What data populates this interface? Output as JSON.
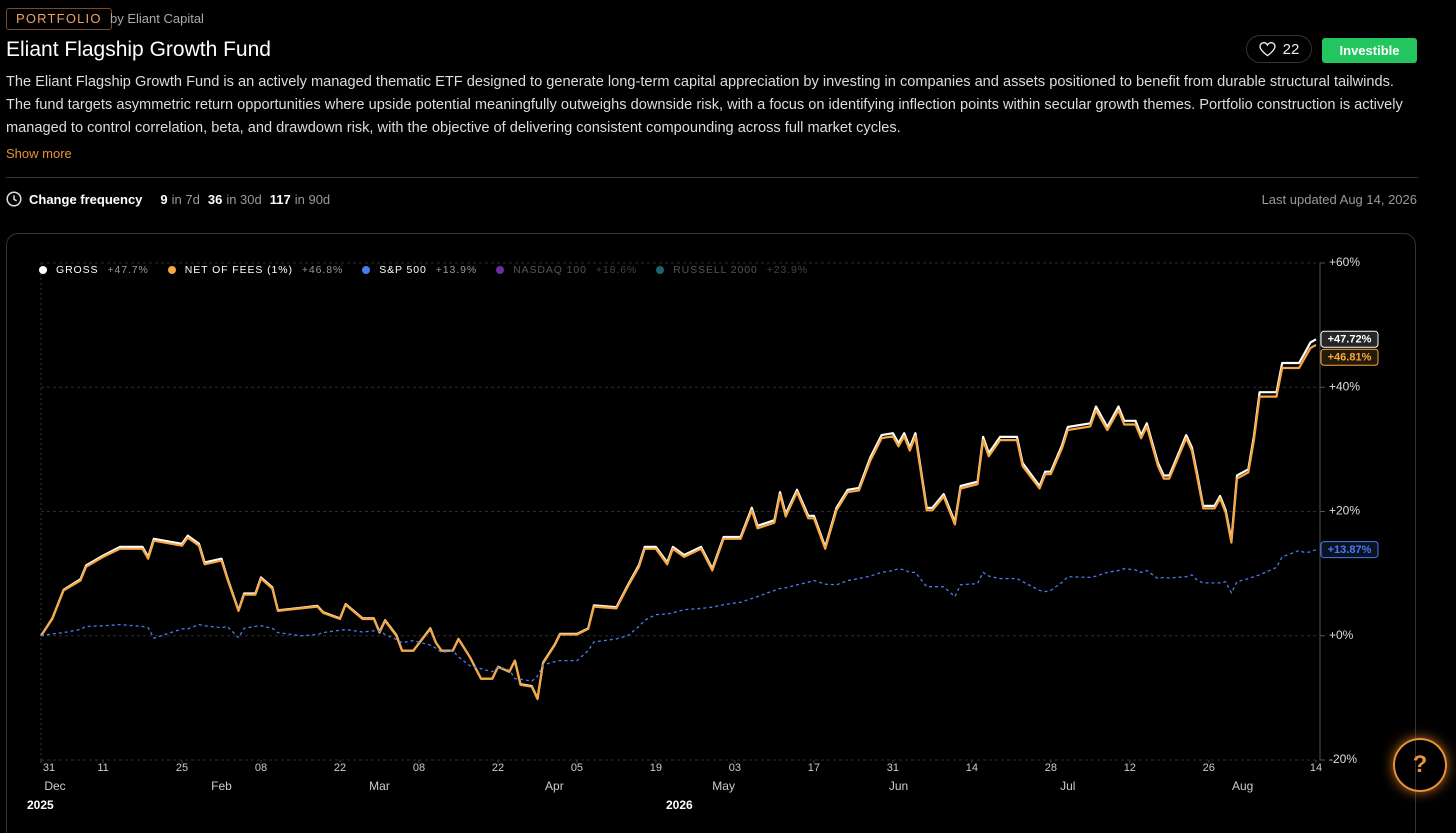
{
  "header": {
    "tag": "PORTFOLIO",
    "byline": "by Eliant Capital",
    "title": "Eliant Flagship Growth Fund",
    "likes": 22,
    "status": "Investible",
    "description": "The Eliant Flagship Growth Fund is an actively managed thematic ETF designed to generate long-term capital appreciation by investing in companies and assets positioned to benefit from durable structural tailwinds. The fund targets asymmetric return opportunities where upside potential meaningfully outweighs downside risk, with a focus on identifying inflection points within secular growth themes. Portfolio construction is actively managed to control correlation, beta, and drawdown risk, with the objective of delivering consistent compounding across full market cycles.",
    "show_more": "Show more"
  },
  "stats": {
    "label": "Change frequency",
    "items": [
      {
        "count": 9,
        "period": "in 7d"
      },
      {
        "count": 36,
        "period": "in 30d"
      },
      {
        "count": 117,
        "period": "in 90d"
      }
    ],
    "last_updated": "Last updated Aug 14, 2026"
  },
  "help_label": "?",
  "chart_data": {
    "type": "line",
    "x": [
      "2025-12-31",
      "2026-01-02",
      "2026-01-04",
      "2026-01-07",
      "2026-01-08",
      "2026-01-11",
      "2026-01-14",
      "2026-01-18",
      "2026-01-19",
      "2026-01-20",
      "2026-01-25",
      "2026-01-26",
      "2026-01-28",
      "2026-01-29",
      "2026-02-01",
      "2026-02-02",
      "2026-02-04",
      "2026-02-05",
      "2026-02-07",
      "2026-02-08",
      "2026-02-10",
      "2026-02-11",
      "2026-02-15",
      "2026-02-18",
      "2026-02-19",
      "2026-02-22",
      "2026-02-23",
      "2026-02-26",
      "2026-02-28",
      "2026-03-01",
      "2026-03-02",
      "2026-03-04",
      "2026-03-05",
      "2026-03-07",
      "2026-03-10",
      "2026-03-11",
      "2026-03-12",
      "2026-03-14",
      "2026-03-15",
      "2026-03-17",
      "2026-03-19",
      "2026-03-21",
      "2026-03-22",
      "2026-03-24",
      "2026-03-25",
      "2026-03-26",
      "2026-03-28",
      "2026-03-29",
      "2026-03-30",
      "2026-04-01",
      "2026-04-02",
      "2026-04-05",
      "2026-04-07",
      "2026-04-08",
      "2026-04-12",
      "2026-04-14",
      "2026-04-16",
      "2026-04-17",
      "2026-04-19",
      "2026-04-21",
      "2026-04-22",
      "2026-04-24",
      "2026-04-27",
      "2026-04-29",
      "2026-05-01",
      "2026-05-04",
      "2026-05-06",
      "2026-05-07",
      "2026-05-10",
      "2026-05-11",
      "2026-05-12",
      "2026-05-14",
      "2026-05-16",
      "2026-05-17",
      "2026-05-19",
      "2026-05-21",
      "2026-05-23",
      "2026-05-25",
      "2026-05-27",
      "2026-05-29",
      "2026-05-31",
      "2026-06-01",
      "2026-06-02",
      "2026-06-03",
      "2026-06-04",
      "2026-06-06",
      "2026-06-07",
      "2026-06-09",
      "2026-06-11",
      "2026-06-12",
      "2026-06-15",
      "2026-06-16",
      "2026-06-17",
      "2026-06-19",
      "2026-06-22",
      "2026-06-23",
      "2026-06-26",
      "2026-06-27",
      "2026-06-28",
      "2026-06-30",
      "2026-07-01",
      "2026-07-05",
      "2026-07-06",
      "2026-07-08",
      "2026-07-10",
      "2026-07-11",
      "2026-07-13",
      "2026-07-14",
      "2026-07-15",
      "2026-07-17",
      "2026-07-18",
      "2026-07-19",
      "2026-07-22",
      "2026-07-23",
      "2026-07-24",
      "2026-07-25",
      "2026-07-27",
      "2026-07-28",
      "2026-07-29",
      "2026-07-30",
      "2026-07-31",
      "2026-08-02",
      "2026-08-03",
      "2026-08-04",
      "2026-08-07",
      "2026-08-08",
      "2026-08-11",
      "2026-08-12",
      "2026-08-13",
      "2026-08-14"
    ],
    "series": [
      {
        "name": "GROSS",
        "color": "#ffffff",
        "legend_value": 47.7,
        "legend_label": "+47.7%",
        "end_label": "+47.72%",
        "dashed": false,
        "values": [
          0,
          2.8,
          7.4,
          9.1,
          11.3,
          12.9,
          14.3,
          14.3,
          12.7,
          15.6,
          14.8,
          16.1,
          14.8,
          11.8,
          12.4,
          9.4,
          4.1,
          6.8,
          6.8,
          9.4,
          7.8,
          4.1,
          4.5,
          4.8,
          3.8,
          2.8,
          5.1,
          2.8,
          2.8,
          0.6,
          2.5,
          0.1,
          -2.4,
          -2.4,
          1.2,
          -1.1,
          -2.4,
          -2.4,
          -0.5,
          -3.4,
          -6.9,
          -6.9,
          -5,
          -5.8,
          -4,
          -7.8,
          -8.1,
          -10.1,
          -4.3,
          -1.5,
          0.3,
          0.3,
          1.2,
          4.9,
          4.6,
          8.1,
          11.4,
          14.3,
          14.3,
          11.8,
          14.3,
          13,
          14.3,
          10.8,
          15.9,
          15.9,
          20.6,
          17.7,
          18.6,
          23.1,
          19.6,
          23.5,
          19.3,
          19.3,
          14.3,
          20.6,
          23.5,
          23.8,
          28.7,
          32.3,
          32.6,
          31,
          32.6,
          30.3,
          32.6,
          20.6,
          20.6,
          22.8,
          18.3,
          24.1,
          24.8,
          32,
          29.4,
          32,
          32,
          27.8,
          24.1,
          26.4,
          26.4,
          30.7,
          33.6,
          34.2,
          36.9,
          33.6,
          36.9,
          34.6,
          34.6,
          32.3,
          34.2,
          27.8,
          25.8,
          25.8,
          32.3,
          30.3,
          25.8,
          20.9,
          20.9,
          22.5,
          20.2,
          15.4,
          25.8,
          26.8,
          32.1,
          39.2,
          39.2,
          43.9,
          43.9,
          45.5,
          47.2,
          47.72
        ]
      },
      {
        "name": "NET OF FEES (1%)",
        "color": "#f5a742",
        "legend_value": 46.8,
        "legend_label": "+46.8%",
        "end_label": "+46.81%",
        "dashed": false,
        "values": [
          0,
          2.7,
          7.3,
          8.9,
          11.1,
          12.7,
          14,
          14,
          12.4,
          15.3,
          14.5,
          15.8,
          14.5,
          11.5,
          12.1,
          9.2,
          4,
          6.6,
          6.6,
          9.2,
          7.6,
          4,
          4.4,
          4.7,
          3.7,
          2.7,
          5,
          2.7,
          2.7,
          0.5,
          2.4,
          0,
          -2.4,
          -2.4,
          1.1,
          -1.1,
          -2.4,
          -2.4,
          -0.5,
          -3.4,
          -6.9,
          -6.9,
          -5,
          -5.8,
          -4,
          -7.9,
          -8.2,
          -10.2,
          -4.4,
          -1.6,
          0.2,
          0.2,
          1.1,
          4.7,
          4.4,
          7.9,
          11.1,
          14,
          14,
          11.5,
          14,
          12.7,
          14,
          10.5,
          15.6,
          15.6,
          20.2,
          17.3,
          18.2,
          22.7,
          19.2,
          23.1,
          18.9,
          18.9,
          14,
          20.2,
          23.1,
          23.4,
          28.2,
          31.8,
          32.1,
          30.5,
          32.1,
          29.8,
          32.1,
          20.2,
          20.2,
          22.4,
          17.9,
          23.7,
          24.4,
          31.5,
          28.9,
          31.5,
          31.5,
          27.3,
          23.7,
          26,
          26,
          30.2,
          33.1,
          33.7,
          36.3,
          33.1,
          36.3,
          34,
          34,
          31.8,
          33.7,
          27.3,
          25.3,
          25.3,
          31.8,
          29.8,
          25.3,
          20.5,
          20.5,
          22.1,
          19.8,
          15,
          25.3,
          26.3,
          31.5,
          38.5,
          38.5,
          43.1,
          43.1,
          44.7,
          46.3,
          46.81
        ]
      },
      {
        "name": "S&P 500",
        "color": "#4a7cf0",
        "legend_value": 13.9,
        "legend_label": "+13.9%",
        "end_label": "+13.87%",
        "dashed": true,
        "values": [
          0,
          0.3,
          0.5,
          1,
          1.5,
          1.6,
          1.8,
          1.5,
          1.3,
          -0.4,
          1.1,
          1.1,
          1.8,
          1.6,
          1.3,
          1.5,
          -0.3,
          1.2,
          1.5,
          1.6,
          1.2,
          0.5,
          0,
          0.2,
          0.5,
          0.9,
          1,
          0.6,
          0.8,
          0.8,
          0.2,
          -0.6,
          -1.1,
          -0.8,
          -1.5,
          -2,
          -2.7,
          -2.4,
          -3.4,
          -4.8,
          -5.3,
          -5.8,
          -5,
          -5.5,
          -6.9,
          -7,
          -7.3,
          -6.5,
          -4.7,
          -4.2,
          -4,
          -4,
          -2.4,
          -1,
          -0.5,
          0,
          1.5,
          2.5,
          3.4,
          3.5,
          3.7,
          4.2,
          4.4,
          4.6,
          5,
          5.4,
          6,
          6.3,
          7.3,
          7.6,
          7.7,
          8.2,
          8.6,
          8.9,
          8.3,
          8.2,
          8.9,
          9.2,
          9.6,
          10.2,
          10.5,
          10.8,
          10.6,
          10.2,
          10.2,
          7.9,
          7.9,
          7.9,
          6.3,
          8.2,
          8.4,
          10.2,
          9.6,
          9.2,
          9.2,
          8.7,
          7.3,
          7.1,
          7.3,
          8.6,
          9.5,
          9.4,
          9.6,
          10.2,
          10.5,
          10.8,
          10.6,
          10.2,
          10.5,
          9.2,
          9.4,
          9.3,
          9.5,
          9.8,
          8.9,
          8.5,
          8.5,
          8.5,
          8.7,
          6.9,
          8.7,
          9.2,
          9.5,
          9.8,
          11,
          12.7,
          13.7,
          13.4,
          13.5,
          13.87
        ]
      }
    ],
    "hidden_series": [
      {
        "name": "NASDAQ 100",
        "color": "#6b2fa0",
        "legend_value": 18.6,
        "legend_label": "+18.6%"
      },
      {
        "name": "RUSSELL 2000",
        "color": "#1d6470",
        "legend_value": 23.9,
        "legend_label": "+23.9%"
      }
    ],
    "xlim": [
      "2025-12-31",
      "2026-08-14"
    ],
    "xticks": [
      {
        "value": "2025-12-31",
        "label": "31"
      },
      {
        "value": "2026-01-11",
        "label": "11"
      },
      {
        "value": "2026-01-25",
        "label": "25"
      },
      {
        "value": "2026-02-08",
        "label": "08"
      },
      {
        "value": "2026-02-22",
        "label": "22"
      },
      {
        "value": "2026-03-08",
        "label": "08"
      },
      {
        "value": "2026-03-22",
        "label": "22"
      },
      {
        "value": "2026-04-05",
        "label": "05"
      },
      {
        "value": "2026-04-19",
        "label": "19"
      },
      {
        "value": "2026-05-03",
        "label": "03"
      },
      {
        "value": "2026-05-17",
        "label": "17"
      },
      {
        "value": "2026-05-31",
        "label": "31"
      },
      {
        "value": "2026-06-14",
        "label": "14"
      },
      {
        "value": "2026-06-28",
        "label": "28"
      },
      {
        "value": "2026-07-12",
        "label": "12"
      },
      {
        "value": "2026-07-26",
        "label": "26"
      },
      {
        "value": "2026-08-14",
        "label": "14"
      }
    ],
    "month_labels": [
      {
        "value": "2025-12-31",
        "label": "Dec"
      },
      {
        "value": "2026-02-01",
        "label": "Feb"
      },
      {
        "value": "2026-03-01",
        "label": "Mar"
      },
      {
        "value": "2026-04-01",
        "label": "Apr"
      },
      {
        "value": "2026-05-01",
        "label": "May"
      },
      {
        "value": "2026-06-01",
        "label": "Jun"
      },
      {
        "value": "2026-07-01",
        "label": "Jul"
      },
      {
        "value": "2026-08-01",
        "label": "Aug"
      }
    ],
    "year_labels": [
      "2025",
      "2026"
    ],
    "ylim": [
      -20,
      60
    ],
    "yticks": [
      {
        "value": -20,
        "label": "-20%"
      },
      {
        "value": 0,
        "label": "+0%"
      },
      {
        "value": 20,
        "label": "+20%"
      },
      {
        "value": 40,
        "label": "+40%"
      },
      {
        "value": 60,
        "label": "+60%"
      }
    ],
    "grid": true
  }
}
